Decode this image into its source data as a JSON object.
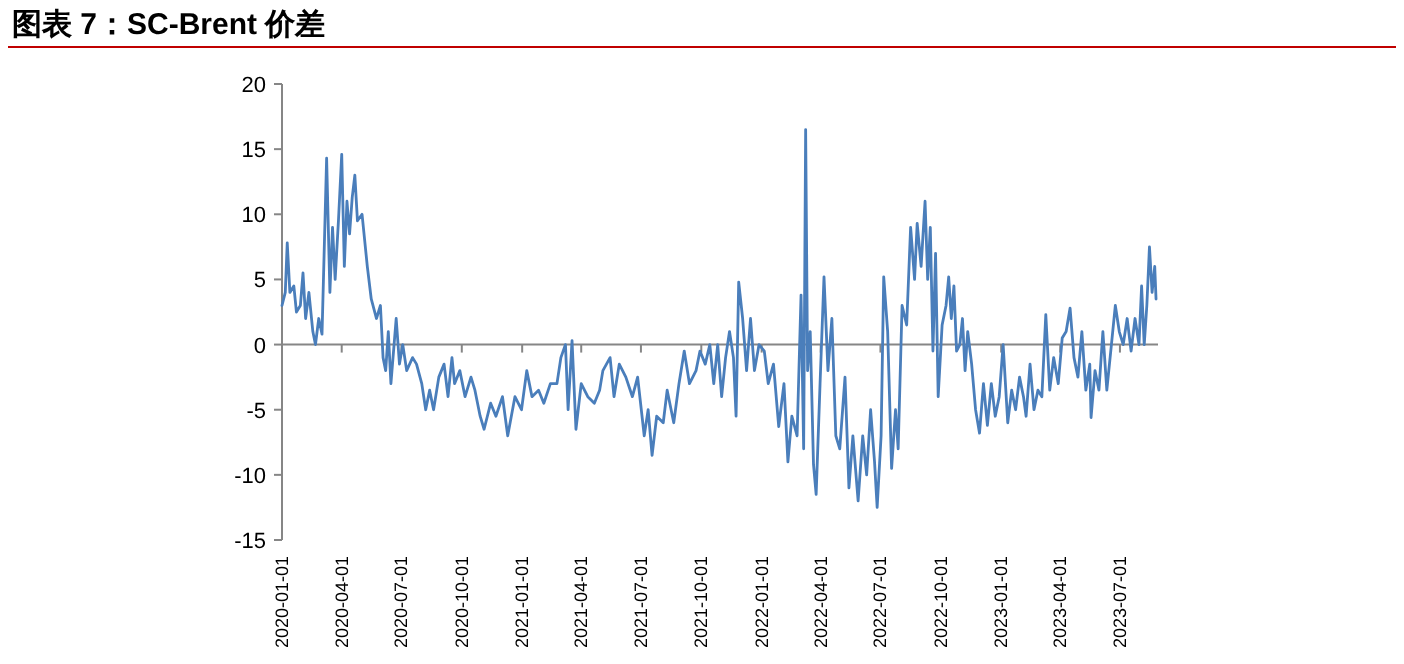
{
  "chart_data": {
    "type": "line",
    "title": "图表 7：SC-Brent 价差",
    "color": "#4a7ebb",
    "x": [
      "2020-01-01",
      "2020-01-06",
      "2020-01-09",
      "2020-01-13",
      "2020-01-19",
      "2020-01-23",
      "2020-01-29",
      "2020-02-02",
      "2020-02-06",
      "2020-02-11",
      "2020-02-17",
      "2020-02-21",
      "2020-02-26",
      "2020-03-02",
      "2020-03-09",
      "2020-03-14",
      "2020-03-18",
      "2020-03-22",
      "2020-03-27",
      "2020-04-01",
      "2020-04-05",
      "2020-04-09",
      "2020-04-13",
      "2020-04-17",
      "2020-04-21",
      "2020-04-25",
      "2020-05-02",
      "2020-05-10",
      "2020-05-16",
      "2020-05-24",
      "2020-05-30",
      "2020-06-03",
      "2020-06-07",
      "2020-06-11",
      "2020-06-15",
      "2020-06-23",
      "2020-06-28",
      "2020-07-03",
      "2020-07-09",
      "2020-07-18",
      "2020-07-24",
      "2020-08-01",
      "2020-08-07",
      "2020-08-13",
      "2020-08-19",
      "2020-08-27",
      "2020-09-04",
      "2020-09-10",
      "2020-09-16",
      "2020-09-20",
      "2020-09-28",
      "2020-10-06",
      "2020-10-15",
      "2020-10-21",
      "2020-10-29",
      "2020-11-04",
      "2020-11-14",
      "2020-11-22",
      "2020-12-02",
      "2020-12-10",
      "2020-12-21",
      "2020-12-31",
      "2021-01-08",
      "2021-01-16",
      "2021-01-26",
      "2021-02-03",
      "2021-02-13",
      "2021-02-23",
      "2021-03-01",
      "2021-03-08",
      "2021-03-12",
      "2021-03-18",
      "2021-03-24",
      "2021-04-01",
      "2021-04-11",
      "2021-04-21",
      "2021-04-29",
      "2021-05-04",
      "2021-05-15",
      "2021-05-21",
      "2021-05-29",
      "2021-06-08",
      "2021-06-18",
      "2021-06-26",
      "2021-07-06",
      "2021-07-12",
      "2021-07-18",
      "2021-07-25",
      "2021-08-04",
      "2021-08-10",
      "2021-08-20",
      "2021-08-28",
      "2021-09-05",
      "2021-09-13",
      "2021-09-23",
      "2021-09-29",
      "2021-10-07",
      "2021-10-14",
      "2021-10-20",
      "2021-10-26",
      "2021-11-01",
      "2021-11-07",
      "2021-11-13",
      "2021-11-19",
      "2021-11-23",
      "2021-11-27",
      "2021-12-03",
      "2021-12-09",
      "2021-12-15",
      "2021-12-21",
      "2021-12-28",
      "2022-01-05",
      "2022-01-11",
      "2022-01-19",
      "2022-01-27",
      "2022-02-04",
      "2022-02-10",
      "2022-02-16",
      "2022-02-24",
      "2022-03-02",
      "2022-03-06",
      "2022-03-09",
      "2022-03-12",
      "2022-03-16",
      "2022-03-21",
      "2022-03-25",
      "2022-03-31",
      "2022-04-06",
      "2022-04-12",
      "2022-04-18",
      "2022-04-24",
      "2022-04-30",
      "2022-05-08",
      "2022-05-14",
      "2022-05-20",
      "2022-05-28",
      "2022-06-04",
      "2022-06-10",
      "2022-06-16",
      "2022-06-22",
      "2022-06-26",
      "2022-07-02",
      "2022-07-06",
      "2022-07-12",
      "2022-07-18",
      "2022-07-24",
      "2022-07-28",
      "2022-08-03",
      "2022-08-10",
      "2022-08-16",
      "2022-08-22",
      "2022-08-26",
      "2022-09-01",
      "2022-09-07",
      "2022-09-11",
      "2022-09-15",
      "2022-09-19",
      "2022-09-23",
      "2022-09-27",
      "2022-10-03",
      "2022-10-09",
      "2022-10-13",
      "2022-10-17",
      "2022-10-21",
      "2022-10-25",
      "2022-10-30",
      "2022-11-03",
      "2022-11-07",
      "2022-11-11",
      "2022-11-17",
      "2022-11-23",
      "2022-11-29",
      "2022-12-05",
      "2022-12-11",
      "2022-12-17",
      "2022-12-23",
      "2022-12-29",
      "2023-01-04",
      "2023-01-11",
      "2023-01-17",
      "2023-01-23",
      "2023-01-29",
      "2023-02-04",
      "2023-02-08",
      "2023-02-14",
      "2023-02-20",
      "2023-02-26",
      "2023-03-04",
      "2023-03-10",
      "2023-03-16",
      "2023-03-22",
      "2023-03-29",
      "2023-04-04",
      "2023-04-10",
      "2023-04-16",
      "2023-04-22",
      "2023-04-28",
      "2023-05-04",
      "2023-05-10",
      "2023-05-16",
      "2023-05-18",
      "2023-05-24",
      "2023-05-30",
      "2023-06-05",
      "2023-06-11",
      "2023-06-18",
      "2023-06-24",
      "2023-06-30",
      "2023-07-06",
      "2023-07-12",
      "2023-07-18",
      "2023-07-24",
      "2023-07-30",
      "2023-08-03",
      "2023-08-07",
      "2023-08-11",
      "2023-08-15",
      "2023-08-19",
      "2023-08-23",
      "2023-08-25"
    ],
    "values": [
      3,
      4,
      7.8,
      4,
      4.5,
      2.5,
      3,
      5.5,
      2,
      4,
      1,
      0,
      2,
      0.8,
      14.3,
      4,
      9,
      5,
      9.5,
      14.6,
      6,
      11,
      8.5,
      11.3,
      13,
      9.5,
      10,
      6,
      3.5,
      2,
      3,
      -1,
      -2,
      1,
      -3,
      2,
      -1.5,
      0,
      -2,
      -1,
      -1.5,
      -3,
      -5,
      -3.5,
      -5,
      -2.5,
      -1.5,
      -4,
      -1,
      -3,
      -2,
      -4,
      -2.5,
      -3.5,
      -5.5,
      -6.5,
      -4.5,
      -5.5,
      -4,
      -7,
      -4,
      -5,
      -2,
      -4,
      -3.5,
      -4.5,
      -3,
      -3,
      -1,
      0,
      -5,
      0.3,
      -6.5,
      -3,
      -4,
      -4.5,
      -3.5,
      -2,
      -1,
      -4,
      -1.5,
      -2.5,
      -4,
      -2.5,
      -7,
      -5,
      -8.5,
      -5.5,
      -6,
      -3.5,
      -6,
      -3,
      -0.5,
      -3,
      -2,
      -0.5,
      -1.5,
      0,
      -3,
      0,
      -4,
      -1,
      1,
      -1,
      -5.5,
      4.8,
      2,
      -2,
      2,
      -2,
      0,
      -0.5,
      -3,
      -1.5,
      -6.3,
      -3,
      -9,
      -5.5,
      -7,
      3.8,
      -8,
      16.5,
      -2,
      1,
      -9.2,
      -11.5,
      -3,
      5.2,
      -2,
      2,
      -7,
      -8,
      -2.5,
      -11,
      -7,
      -12,
      -7,
      -10,
      -5,
      -9,
      -12.5,
      -7,
      5.2,
      1,
      -9.5,
      -5,
      -8,
      3,
      1.5,
      9,
      5,
      9.3,
      6,
      11,
      5,
      9,
      -0.5,
      7,
      -4,
      1.5,
      3,
      5.2,
      2,
      4.5,
      -0.5,
      0,
      2,
      -2,
      1,
      -1.5,
      -5,
      -6.8,
      -3,
      -6.2,
      -3,
      -5.5,
      -4,
      0,
      -6,
      -3.5,
      -5,
      -2.5,
      -4,
      -5.5,
      -1.5,
      -5,
      -3.5,
      -4,
      2.3,
      -3.5,
      -1,
      -3,
      0.5,
      1,
      2.8,
      -1,
      -2.5,
      1,
      -3.5,
      -1.5,
      -5.6,
      -2,
      -3.5,
      1,
      -3.5,
      0,
      3,
      1,
      0,
      2,
      -0.5,
      2,
      0,
      4.5,
      0,
      3,
      7.5,
      4,
      6,
      3.5
    ],
    "xlim": [
      "2020-01-01",
      "2023-08-28"
    ],
    "xticks": [
      "2020-01-01",
      "2020-04-01",
      "2020-07-01",
      "2020-10-01",
      "2021-01-01",
      "2021-04-01",
      "2021-07-01",
      "2021-10-01",
      "2022-01-01",
      "2022-04-01",
      "2022-07-01",
      "2022-10-01",
      "2023-01-01",
      "2023-04-01",
      "2023-07-01"
    ],
    "ylim": [
      -15,
      20
    ],
    "yticks": [
      -15,
      -10,
      -5,
      0,
      5,
      10,
      15,
      20
    ]
  }
}
